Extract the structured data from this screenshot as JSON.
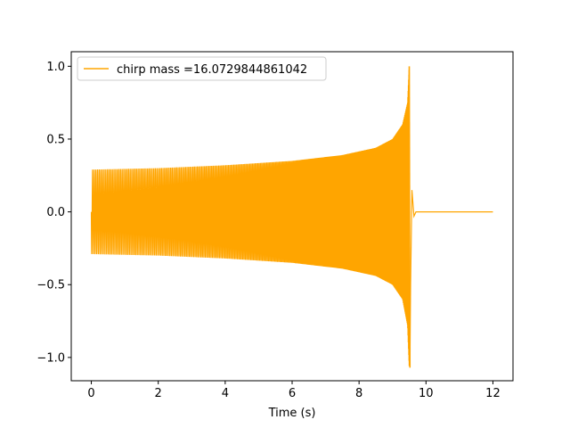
{
  "chart_data": {
    "type": "line",
    "title": "",
    "xlabel": "Time (s)",
    "ylabel": "",
    "xlim": [
      -0.6,
      12.6
    ],
    "ylim": [
      -1.16,
      1.1
    ],
    "xticks": [
      0,
      2,
      4,
      6,
      8,
      10,
      12
    ],
    "xtick_labels": [
      "0",
      "2",
      "4",
      "6",
      "8",
      "10",
      "12"
    ],
    "yticks": [
      -1.0,
      -0.5,
      0.0,
      0.5,
      1.0
    ],
    "ytick_labels": [
      "−1.0",
      "−0.5",
      "0.0",
      "0.5",
      "1.0"
    ],
    "grid": false,
    "legend_position": "top-left",
    "series": [
      {
        "name": "chirp mass =16.0729844861042",
        "color": "#ffa500",
        "x_start": 0,
        "merger_time": 9.5,
        "x_end": 12,
        "peak_max": 1.0,
        "peak_min": -1.07,
        "upper_envelope": [
          {
            "x": 0.0,
            "y": 0.29
          },
          {
            "x": 2.0,
            "y": 0.3
          },
          {
            "x": 4.0,
            "y": 0.32
          },
          {
            "x": 6.0,
            "y": 0.35
          },
          {
            "x": 7.5,
            "y": 0.39
          },
          {
            "x": 8.5,
            "y": 0.44
          },
          {
            "x": 9.0,
            "y": 0.5
          },
          {
            "x": 9.3,
            "y": 0.6
          },
          {
            "x": 9.45,
            "y": 0.75
          },
          {
            "x": 9.5,
            "y": 1.0
          }
        ],
        "lower_envelope": [
          {
            "x": 0.0,
            "y": -0.29
          },
          {
            "x": 2.0,
            "y": -0.3
          },
          {
            "x": 4.0,
            "y": -0.32
          },
          {
            "x": 6.0,
            "y": -0.35
          },
          {
            "x": 7.5,
            "y": -0.39
          },
          {
            "x": 8.5,
            "y": -0.44
          },
          {
            "x": 9.0,
            "y": -0.5
          },
          {
            "x": 9.3,
            "y": -0.6
          },
          {
            "x": 9.45,
            "y": -0.78
          },
          {
            "x": 9.5,
            "y": -1.07
          }
        ],
        "post_merger_value": 0.0
      }
    ]
  }
}
